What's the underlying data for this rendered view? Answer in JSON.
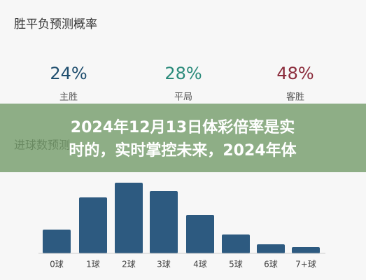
{
  "chart_data": [
    {
      "type": "stat",
      "title": "胜平负预测概率",
      "categories": [
        "主胜",
        "平局",
        "客胜"
      ],
      "values": [
        24,
        28,
        48
      ],
      "value_labels": [
        "24%",
        "28%",
        "48%"
      ],
      "colors": [
        "#1f4e6e",
        "#2a8a7a",
        "#8a2a3a"
      ]
    },
    {
      "type": "bar",
      "title": "进球数预测",
      "categories": [
        "0球",
        "1球",
        "2球",
        "3球",
        "4球",
        "5球",
        "6球",
        "7+球"
      ],
      "values": [
        34,
        80,
        101,
        89,
        55,
        27,
        13,
        9
      ],
      "color": "#2d5a80",
      "ylim": [
        0,
        110
      ]
    }
  ],
  "overlay": {
    "lines": [
      "2024年12月13日体彩倍率是实",
      "时的，实时掌控未来，2024年体"
    ]
  }
}
